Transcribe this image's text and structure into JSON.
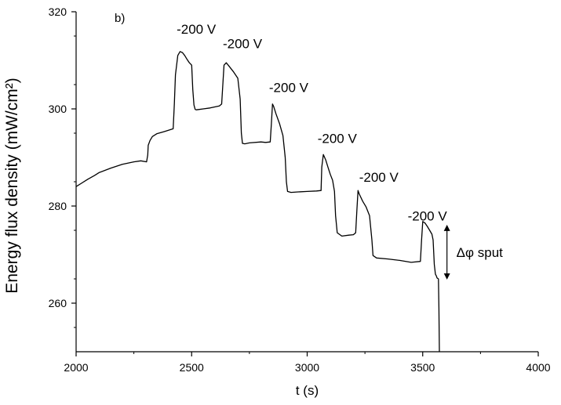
{
  "chart_data": {
    "type": "line",
    "panel_label": "b)",
    "xlabel": "t (s)",
    "ylabel": "Energy flux density  (mW/cm²)",
    "xlim": [
      2000,
      4000
    ],
    "ylim": [
      250,
      320
    ],
    "xticks": [
      2000,
      2500,
      3000,
      3500,
      4000
    ],
    "yticks": [
      260,
      280,
      300,
      320
    ],
    "grid": false,
    "series": [
      {
        "x": [
          2000,
          2020,
          2050,
          2080,
          2100,
          2150,
          2200,
          2250,
          2280,
          2305,
          2310,
          2312,
          2320,
          2330,
          2350,
          2380,
          2400,
          2420,
          2425,
          2430,
          2440,
          2450,
          2460,
          2470,
          2480,
          2490,
          2500,
          2505,
          2510,
          2515,
          2520,
          2550,
          2580,
          2600,
          2620,
          2630,
          2635,
          2640,
          2650,
          2660,
          2680,
          2700,
          2710,
          2715,
          2720,
          2730,
          2750,
          2800,
          2820,
          2840,
          2845,
          2850,
          2855,
          2865,
          2880,
          2895,
          2905,
          2910,
          2915,
          2930,
          2960,
          3000,
          3040,
          3060,
          3063,
          3070,
          3080,
          3090,
          3100,
          3110,
          3118,
          3123,
          3130,
          3150,
          3180,
          3200,
          3210,
          3215,
          3220,
          3225,
          3240,
          3255,
          3270,
          3280,
          3285,
          3300,
          3350,
          3400,
          3450,
          3490,
          3495,
          3500,
          3510,
          3520,
          3530,
          3540,
          3545,
          3550,
          3555,
          3560,
          3562,
          3568,
          3570,
          3572
        ],
        "y": [
          284,
          284.6,
          285.5,
          286.3,
          286.9,
          287.8,
          288.6,
          289.1,
          289.3,
          289.1,
          290.5,
          292.5,
          293.5,
          294.3,
          294.9,
          295.3,
          295.6,
          295.9,
          301,
          307,
          311,
          311.8,
          311.6,
          311,
          310.2,
          309.5,
          309,
          304,
          300.8,
          299.9,
          299.8,
          300,
          300.2,
          300.4,
          300.6,
          301,
          305,
          309,
          309.5,
          308.9,
          307.7,
          306.3,
          302,
          295,
          292.9,
          292.8,
          293,
          293.2,
          293.1,
          293.2,
          297,
          301,
          300.5,
          299,
          297,
          294.5,
          290,
          285,
          283,
          282.8,
          282.9,
          283,
          283.1,
          283.2,
          288,
          290.6,
          289.5,
          288,
          286.5,
          285.3,
          283,
          278,
          274.5,
          273.8,
          274,
          274.1,
          274.5,
          279,
          283.2,
          282.5,
          281,
          279.8,
          278,
          273,
          269.8,
          269.3,
          269.1,
          268.8,
          268.4,
          268.6,
          273,
          276.8,
          276.5,
          275.8,
          275,
          274.2,
          273,
          268,
          266,
          265.5,
          265.2,
          265,
          259,
          250
        ]
      }
    ],
    "annotations": [
      {
        "text": "-200 V",
        "x": 2520,
        "y": 315.5
      },
      {
        "text": "-200 V",
        "x": 2720,
        "y": 312.5
      },
      {
        "text": "-200 V",
        "x": 2920,
        "y": 303.5
      },
      {
        "text": "-200 V",
        "x": 3130,
        "y": 293
      },
      {
        "text": "-200 V",
        "x": 3310,
        "y": 285
      },
      {
        "text": "-200 V",
        "x": 3520,
        "y": 277
      }
    ],
    "delta_label": "Δφ sput",
    "delta_arrow": {
      "x": 3605,
      "y1": 275.5,
      "y2": 265.5
    }
  }
}
